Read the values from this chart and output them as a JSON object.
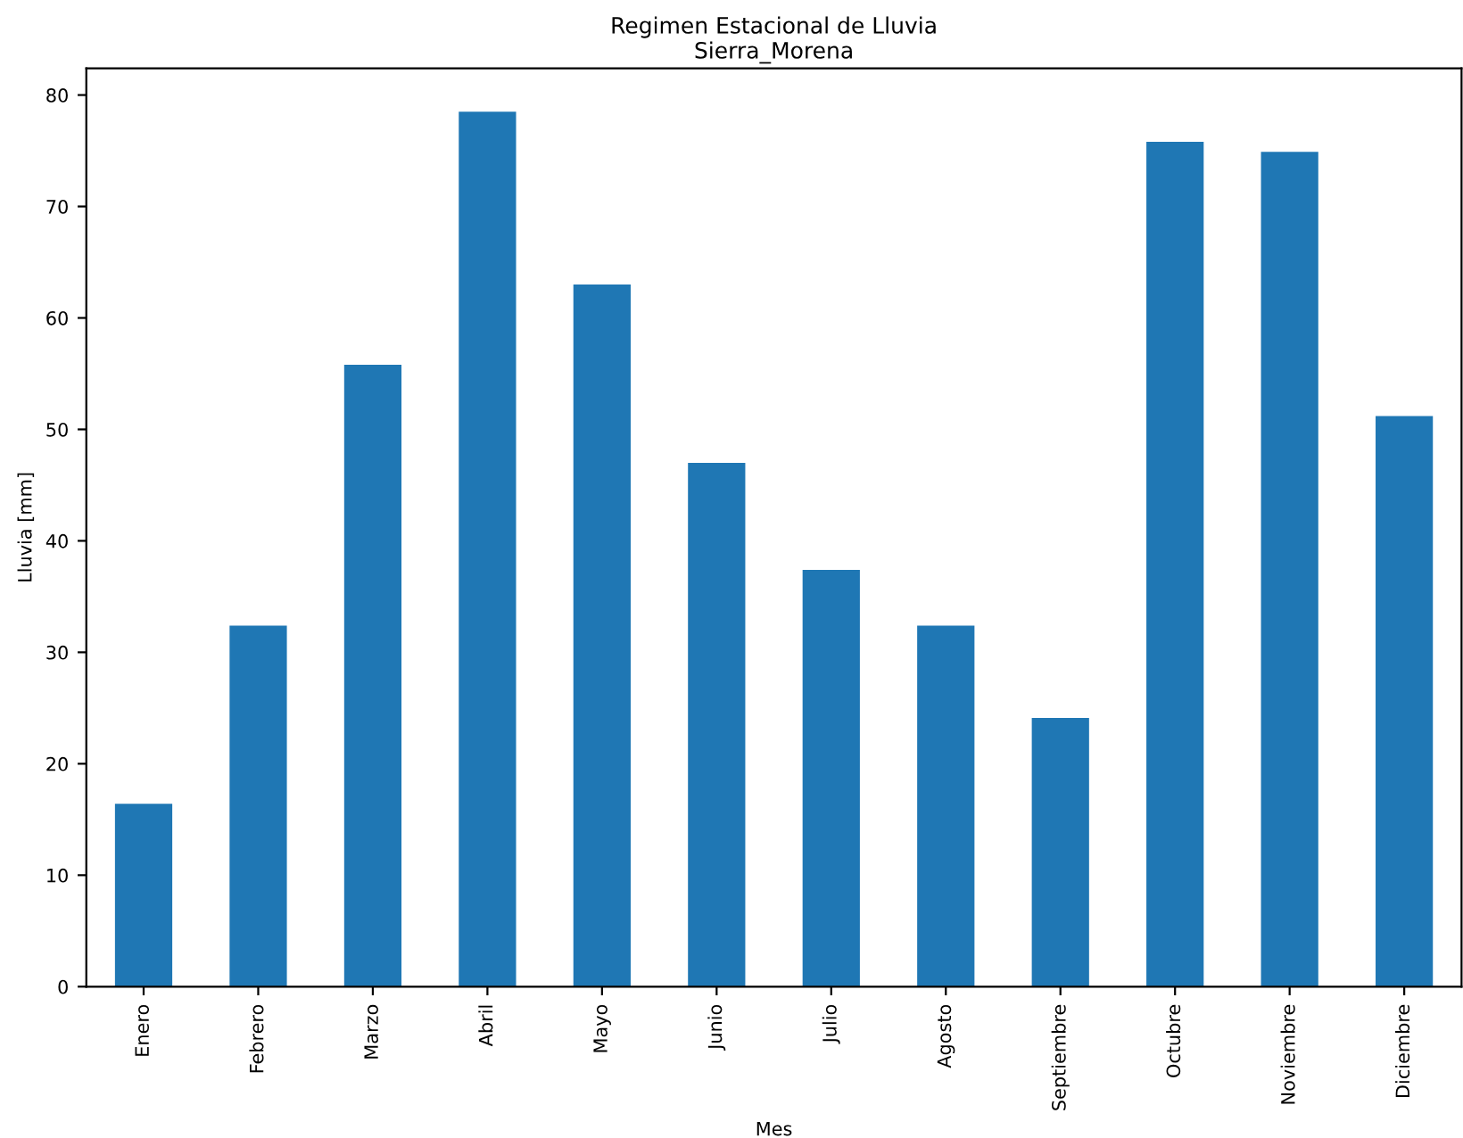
{
  "chart_data": {
    "type": "bar",
    "title": "Regimen Estacional de Lluvia\nSierra_Morena",
    "xlabel": "Mes",
    "ylabel": "Lluvia [mm]",
    "categories": [
      "Enero",
      "Febrero",
      "Marzo",
      "Abril",
      "Mayo",
      "Junio",
      "Julio",
      "Agosto",
      "Septiembre",
      "Octubre",
      "Noviembre",
      "Diciembre"
    ],
    "values": [
      16.4,
      32.4,
      55.8,
      78.5,
      63.0,
      47.0,
      37.4,
      32.4,
      24.1,
      75.8,
      74.9,
      51.2
    ],
    "color": "#1f77b4",
    "ylim": [
      0,
      82.4
    ],
    "yticks": [
      0,
      10,
      20,
      30,
      40,
      50,
      60,
      70,
      80
    ],
    "grid": false,
    "legend": false
  }
}
